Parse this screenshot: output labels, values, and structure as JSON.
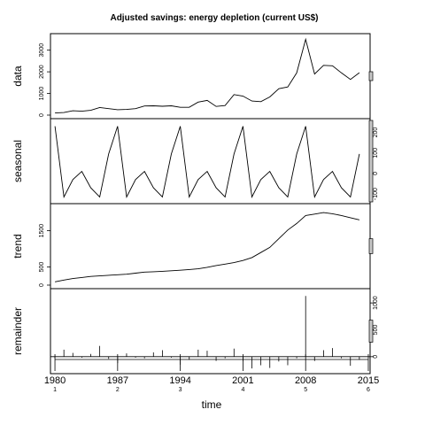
{
  "chart_data": {
    "type": "line",
    "title": "Adjusted savings: energy depletion (current US$)",
    "xlabel": "time",
    "x_ticks": [
      {
        "value": 1980,
        "label": "1980",
        "sub": "1"
      },
      {
        "value": 1987,
        "label": "1987",
        "sub": "2"
      },
      {
        "value": 1994,
        "label": "1994",
        "sub": "3"
      },
      {
        "value": 2001,
        "label": "2001",
        "sub": "4"
      },
      {
        "value": 2008,
        "label": "2008",
        "sub": "5"
      },
      {
        "value": 2015,
        "label": "2015",
        "sub": "6"
      }
    ],
    "xlim": [
      1979.5,
      2015.2
    ],
    "grid": false,
    "panels": [
      {
        "ylabel": "data",
        "style": "line",
        "ylim": [
          0,
          3600
        ],
        "y_ticks": [
          0,
          1000,
          2000,
          3000
        ],
        "tick_side": "left",
        "x": [
          1980,
          1981,
          1982,
          1983,
          1984,
          1985,
          1986,
          1987,
          1988,
          1989,
          1990,
          1991,
          1992,
          1993,
          1994,
          1995,
          1996,
          1997,
          1998,
          1999,
          2000,
          2001,
          2002,
          2003,
          2004,
          2005,
          2006,
          2007,
          2008,
          2009,
          2010,
          2011,
          2012,
          2013,
          2014
        ],
        "values": [
          100,
          120,
          200,
          180,
          220,
          350,
          300,
          250,
          260,
          300,
          420,
          430,
          410,
          430,
          360,
          360,
          600,
          680,
          400,
          440,
          950,
          880,
          650,
          620,
          840,
          1220,
          1300,
          1950,
          3500,
          1900,
          2300,
          2280,
          1950,
          1650,
          1960
        ]
      },
      {
        "ylabel": "seasonal",
        "style": "line",
        "ylim": [
          -130,
          250
        ],
        "y_ticks": [
          -100,
          0,
          100,
          200
        ],
        "tick_side": "right",
        "x": [
          1980,
          1981,
          1982,
          1983,
          1984,
          1985,
          1986,
          1987,
          1988,
          1989,
          1990,
          1991,
          1992,
          1993,
          1994,
          1995,
          1996,
          1997,
          1998,
          1999,
          2000,
          2001,
          2002,
          2003,
          2004,
          2005,
          2006,
          2007,
          2008,
          2009,
          2010,
          2011,
          2012,
          2013,
          2014
        ],
        "values": [
          230,
          -115,
          -30,
          10,
          -70,
          -115,
          95,
          230,
          -115,
          -30,
          10,
          -70,
          -115,
          95,
          230,
          -115,
          -30,
          10,
          -70,
          -115,
          95,
          230,
          -115,
          -30,
          10,
          -70,
          -115,
          95,
          230,
          -115,
          -30,
          10,
          -70,
          -115,
          95
        ]
      },
      {
        "ylabel": "trend",
        "style": "line",
        "ylim": [
          0,
          2150
        ],
        "y_ticks": [
          0,
          500,
          1500
        ],
        "tick_side": "left",
        "x": [
          1980,
          1981,
          1982,
          1983,
          1984,
          1985,
          1986,
          1987,
          1988,
          1989,
          1990,
          1991,
          1992,
          1993,
          1994,
          1995,
          1996,
          1997,
          1998,
          1999,
          2000,
          2001,
          2002,
          2003,
          2004,
          2005,
          2006,
          2007,
          2008,
          2009,
          2010,
          2011,
          2012,
          2013,
          2014
        ],
        "values": [
          90,
          140,
          180,
          210,
          240,
          255,
          270,
          285,
          300,
          330,
          360,
          370,
          380,
          395,
          410,
          430,
          450,
          490,
          540,
          580,
          620,
          680,
          760,
          900,
          1040,
          1280,
          1520,
          1700,
          1920,
          1960,
          2000,
          1970,
          1920,
          1860,
          1800
        ]
      },
      {
        "ylabel": "remainder",
        "style": "hbar",
        "ylim": [
          -250,
          1200
        ],
        "y_ticks": [
          0,
          500,
          1000
        ],
        "tick_side": "right",
        "x": [
          1980,
          1981,
          1982,
          1983,
          1984,
          1985,
          1986,
          1987,
          1988,
          1989,
          1990,
          1991,
          1992,
          1993,
          1994,
          1995,
          1996,
          1997,
          1998,
          1999,
          2000,
          2001,
          2002,
          2003,
          2004,
          2005,
          2006,
          2007,
          2008,
          2009,
          2010,
          2011,
          2012,
          2013,
          2014
        ],
        "values": [
          -30,
          130,
          70,
          -20,
          50,
          200,
          -40,
          -120,
          60,
          -20,
          -30,
          80,
          120,
          -20,
          -150,
          -60,
          130,
          110,
          -80,
          -30,
          150,
          -80,
          -220,
          -160,
          -210,
          -90,
          -160,
          -30,
          1130,
          -80,
          120,
          160,
          -30,
          -170,
          -60
        ]
      }
    ]
  }
}
